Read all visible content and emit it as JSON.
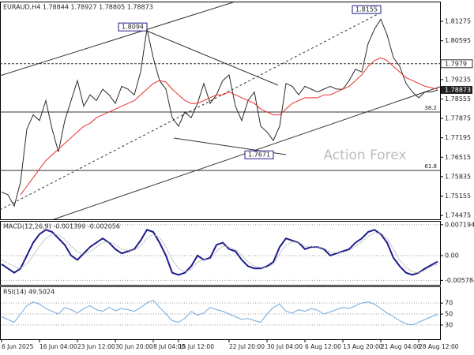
{
  "chart_data": [
    {
      "type": "line",
      "title": "EURAUD,H4 1.78844 1.78927 1.78805 1.78873",
      "series": [
        {
          "name": "EURAUD",
          "color": "#2b2b2b",
          "values": [
            1.753,
            1.752,
            1.748,
            1.7565,
            1.775,
            1.78,
            1.778,
            1.785,
            1.775,
            1.767,
            1.778,
            1.785,
            1.792,
            1.783,
            1.787,
            1.785,
            1.789,
            1.787,
            1.784,
            1.79,
            1.789,
            1.787,
            1.795,
            1.81,
            1.8,
            1.792,
            1.789,
            1.779,
            1.776,
            1.781,
            1.779,
            1.784,
            1.791,
            1.784,
            1.787,
            1.792,
            1.794,
            1.783,
            1.778,
            1.785,
            1.788,
            1.776,
            1.774,
            1.771,
            1.776,
            1.791,
            1.79,
            1.787,
            1.79,
            1.789,
            1.788,
            1.789,
            1.79,
            1.789,
            1.789,
            1.792,
            1.796,
            1.795,
            1.805,
            1.81,
            1.8135,
            1.808,
            1.8,
            1.797,
            1.791,
            1.788,
            1.786,
            1.788,
            1.788,
            1.78873
          ]
        },
        {
          "name": "MA",
          "color": "#e8312c",
          "values": [
            null,
            null,
            null,
            1.752,
            1.755,
            1.758,
            1.761,
            1.764,
            1.766,
            1.768,
            1.77,
            1.772,
            1.774,
            1.776,
            1.777,
            1.779,
            1.78,
            1.781,
            1.782,
            1.783,
            1.784,
            1.785,
            1.787,
            1.789,
            1.791,
            1.792,
            1.7915,
            1.789,
            1.787,
            1.785,
            1.784,
            1.784,
            1.785,
            1.786,
            1.787,
            1.787,
            1.788,
            1.787,
            1.786,
            1.785,
            1.784,
            1.782,
            1.781,
            1.78,
            1.78,
            1.782,
            1.784,
            1.785,
            1.786,
            1.786,
            1.786,
            1.787,
            1.787,
            1.788,
            1.789,
            1.79,
            1.792,
            1.794,
            1.797,
            1.799,
            1.8,
            1.799,
            1.797,
            1.795,
            1.793,
            1.792,
            1.791,
            1.79,
            1.7895,
            1.789
          ]
        }
      ],
      "ylim": [
        1.7434,
        1.8194
      ],
      "yticks": [
        1.81275,
        1.80595,
        1.79235,
        1.78555,
        1.77875,
        1.77195,
        1.76515,
        1.75835,
        1.75155,
        1.74475
      ],
      "levels": [
        {
          "label": "1.7979",
          "value": 1.7979,
          "style": "dashed"
        },
        {
          "label": "38.2",
          "value": 1.781,
          "style": "solid"
        },
        {
          "label": "61.8",
          "value": 1.7605,
          "style": "solid"
        }
      ],
      "peaks": [
        {
          "label": "1.8094",
          "x": 23,
          "value": 1.8094
        },
        {
          "label": "1.8155",
          "x": 60,
          "value": 1.8155
        },
        {
          "label": "1.7671",
          "x": 43,
          "value": 1.7671
        }
      ],
      "watermark": "Action Forex"
    },
    {
      "type": "line",
      "title": "MACD(12,26,9) -0.001399 -0.002056",
      "series": [
        {
          "name": "MACD",
          "color": "#1c1c8a",
          "values": [
            -0.002,
            -0.003,
            -0.004,
            -0.003,
            0.0,
            0.003,
            0.005,
            0.006,
            0.0055,
            0.004,
            0.0025,
            0.0,
            -0.001,
            0.0005,
            0.002,
            0.003,
            0.004,
            0.003,
            0.0015,
            0.0005,
            0.001,
            0.0015,
            0.0035,
            0.006,
            0.0055,
            0.003,
            0.0,
            -0.004,
            -0.0045,
            -0.004,
            -0.0025,
            0.0,
            -0.001,
            -0.0005,
            0.0025,
            0.003,
            0.0015,
            0.001,
            -0.001,
            -0.0025,
            -0.003,
            -0.003,
            -0.0025,
            -0.0015,
            0.002,
            0.004,
            0.0035,
            0.003,
            0.0015,
            0.002,
            0.002,
            0.0015,
            0.0,
            0.0005,
            0.001,
            0.0015,
            0.003,
            0.004,
            0.0055,
            0.006,
            0.005,
            0.003,
            -0.0005,
            -0.0025,
            -0.004,
            -0.0045,
            -0.004,
            -0.003,
            -0.0022,
            -0.001399
          ]
        },
        {
          "name": "Signal",
          "color": "#b0b0b0",
          "values": [
            -0.001,
            -0.0018,
            -0.0026,
            -0.003,
            -0.002,
            0.0,
            0.0022,
            0.004,
            0.005,
            0.0048,
            0.0038,
            0.0022,
            0.0008,
            0.0003,
            0.001,
            0.002,
            0.003,
            0.0032,
            0.0025,
            0.0015,
            0.0012,
            0.0013,
            0.0022,
            0.004,
            0.005,
            0.0042,
            0.002,
            -0.001,
            -0.003,
            -0.0038,
            -0.0032,
            -0.0015,
            -0.001,
            -0.0008,
            0.001,
            0.0022,
            0.002,
            0.0014,
            0.0,
            -0.0015,
            -0.0025,
            -0.0028,
            -0.0027,
            -0.002,
            0.0005,
            0.0025,
            0.0032,
            0.0031,
            0.0022,
            0.0021,
            0.002,
            0.0017,
            0.0008,
            0.0006,
            0.0008,
            0.0012,
            0.0022,
            0.0032,
            0.0045,
            0.0053,
            0.0052,
            0.004,
            0.0015,
            -0.001,
            -0.0028,
            -0.0038,
            -0.004,
            -0.0034,
            -0.0025,
            -0.002056
          ]
        }
      ],
      "ylim": [
        -0.007,
        0.0079
      ],
      "yticks": [
        0.007194,
        {
          "value": 0,
          "label": "0.00"
        },
        -0.005784
      ]
    },
    {
      "type": "line",
      "title": "RSI(14) 49.5024",
      "series": [
        {
          "name": "RSI",
          "color": "#6fa8dc",
          "values": [
            45,
            40,
            35,
            50,
            65,
            72,
            68,
            60,
            55,
            50,
            62,
            58,
            52,
            60,
            65,
            58,
            55,
            62,
            56,
            60,
            58,
            55,
            62,
            70,
            75,
            62,
            50,
            38,
            35,
            42,
            55,
            48,
            52,
            62,
            58,
            55,
            50,
            45,
            40,
            42,
            38,
            35,
            50,
            62,
            68,
            55,
            52,
            58,
            55,
            60,
            57,
            50,
            54,
            58,
            62,
            60,
            65,
            70,
            72,
            68,
            60,
            52,
            45,
            38,
            32,
            30,
            35,
            40,
            45,
            49.5024
          ]
        }
      ],
      "ylim": [
        4,
        99
      ],
      "yticks": [
        70,
        50,
        30
      ],
      "xticks": [
        {
          "value": 0,
          "label": "6 Jun 2025"
        },
        {
          "value": 6,
          "label": "16 Jun 04:00"
        },
        {
          "value": 12,
          "label": "23 Jun 12:00"
        },
        {
          "value": 18,
          "label": "30 Jun 20:00"
        },
        {
          "value": 24,
          "label": "8 Jul 04:00"
        },
        {
          "value": 28,
          "label": "15 Jul 12:00"
        },
        {
          "value": 36,
          "label": "22 Jul 20:00"
        },
        {
          "value": 42,
          "label": "30 Jul 04:00"
        },
        {
          "value": 48,
          "label": "6 Aug 12:00"
        },
        {
          "value": 54,
          "label": "13 Aug 20:00"
        },
        {
          "value": 60,
          "label": "21 Aug 04:00"
        },
        {
          "value": 66,
          "label": "28 Aug 12:00"
        }
      ]
    }
  ]
}
